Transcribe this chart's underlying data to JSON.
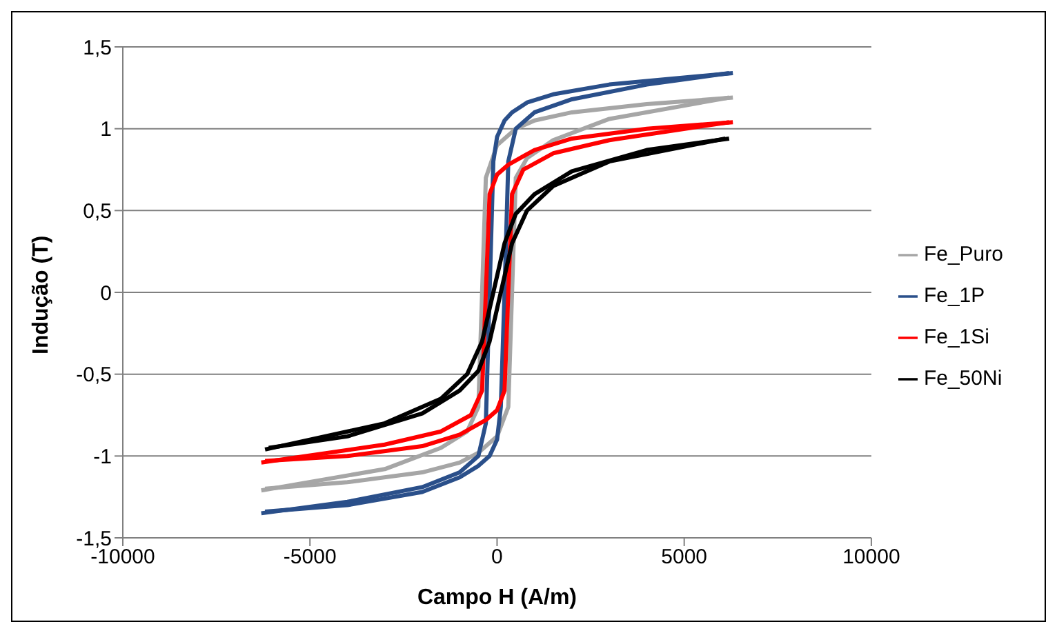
{
  "chart_data": {
    "type": "line",
    "xlabel": "Campo H (A/m)",
    "ylabel": "Indução (T)",
    "xlim": [
      -10000,
      10000
    ],
    "xticks": [
      -10000,
      -5000,
      0,
      5000,
      10000
    ],
    "ylim": [
      -1.5,
      1.5
    ],
    "yticks": [
      {
        "value": -1.5,
        "label": "-1,5"
      },
      -1,
      {
        "value": -0.5,
        "label": "-0,5"
      },
      0,
      {
        "value": 0.5,
        "label": "0,5"
      },
      1,
      {
        "value": 1.5,
        "label": "1,5"
      }
    ],
    "grid": "y",
    "legend": "right",
    "marker": "none",
    "line_style": "solid",
    "series": [
      {
        "name": "Fe_Puro",
        "color": "#a6a6a6",
        "x": [
          6300,
          4000,
          2000,
          1000,
          500,
          0,
          -300,
          -400,
          -500,
          -800,
          -1500,
          -3000,
          -6300
        ],
        "values": [
          1.19,
          1.15,
          1.1,
          1.05,
          1.0,
          0.9,
          0.7,
          0,
          -0.7,
          -0.85,
          -0.95,
          -1.08,
          -1.21
        ]
      },
      {
        "color": "#a6a6a6",
        "x": [
          -6200,
          -4000,
          -2000,
          -1000,
          -500,
          0,
          300,
          400,
          500,
          800,
          1500,
          3000,
          6200
        ],
        "values": [
          -1.2,
          -1.16,
          -1.1,
          -1.04,
          -0.98,
          -0.88,
          -0.7,
          0,
          0.7,
          0.82,
          0.93,
          1.06,
          1.19
        ]
      },
      {
        "name": "Fe_1P",
        "color": "#2a4f8a",
        "x": [
          6300,
          3000,
          1500,
          800,
          400,
          200,
          0,
          -100,
          -200,
          -300,
          -500,
          -1000,
          -2000,
          -4000,
          -6300
        ],
        "values": [
          1.34,
          1.27,
          1.21,
          1.16,
          1.1,
          1.05,
          0.95,
          0.8,
          0,
          -0.8,
          -1.0,
          -1.1,
          -1.19,
          -1.28,
          -1.35
        ]
      },
      {
        "color": "#2a4f8a",
        "x": [
          -6200,
          -4000,
          -2000,
          -1000,
          -500,
          -200,
          0,
          100,
          200,
          300,
          500,
          1000,
          2000,
          4000,
          6200
        ],
        "values": [
          -1.34,
          -1.3,
          -1.22,
          -1.13,
          -1.06,
          -1.0,
          -0.9,
          -0.7,
          0,
          0.8,
          1.0,
          1.1,
          1.18,
          1.27,
          1.34
        ]
      },
      {
        "name": "Fe_1Si",
        "color": "#ff0000",
        "x": [
          6300,
          4000,
          2000,
          1000,
          300,
          0,
          -200,
          -300,
          -400,
          -700,
          -1500,
          -3000,
          -6300
        ],
        "values": [
          1.04,
          1.0,
          0.94,
          0.87,
          0.78,
          0.72,
          0.6,
          0,
          -0.6,
          -0.75,
          -0.85,
          -0.93,
          -1.04
        ]
      },
      {
        "color": "#ff0000",
        "x": [
          -6200,
          -4000,
          -2000,
          -1000,
          -300,
          0,
          200,
          300,
          400,
          700,
          1500,
          3000,
          6200
        ],
        "values": [
          -1.03,
          -1.0,
          -0.94,
          -0.87,
          -0.78,
          -0.72,
          -0.6,
          0,
          0.6,
          0.75,
          0.85,
          0.93,
          1.04
        ]
      },
      {
        "name": "Fe_50Ni",
        "color": "#000000",
        "x": [
          6200,
          4000,
          2000,
          1000,
          500,
          200,
          -100,
          -400,
          -800,
          -1500,
          -3000,
          -6200
        ],
        "values": [
          0.94,
          0.87,
          0.74,
          0.6,
          0.48,
          0.3,
          0,
          -0.3,
          -0.5,
          -0.65,
          -0.8,
          -0.96
        ]
      },
      {
        "color": "#000000",
        "x": [
          -6100,
          -4000,
          -2000,
          -1000,
          -500,
          -200,
          100,
          400,
          800,
          1500,
          3000,
          6100
        ],
        "values": [
          -0.95,
          -0.88,
          -0.74,
          -0.6,
          -0.48,
          -0.3,
          0,
          0.3,
          0.5,
          0.65,
          0.8,
          0.94
        ]
      }
    ]
  }
}
